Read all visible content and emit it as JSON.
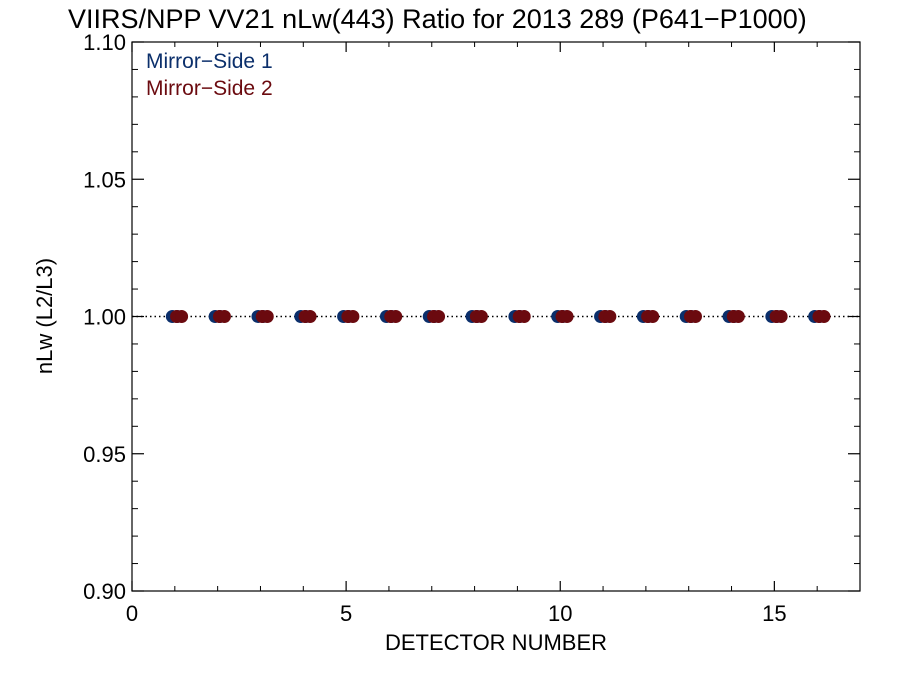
{
  "chart_data": {
    "type": "scatter",
    "title": "VIIRS/NPP VV21 nLw(443) Ratio for 2013 289 (P641−P1000)",
    "xlabel": "DETECTOR NUMBER",
    "ylabel": "nLw (L2/L3)",
    "xlim": [
      0,
      17
    ],
    "ylim": [
      0.9,
      1.1
    ],
    "x_ticks": [
      0,
      5,
      10,
      15
    ],
    "x_tick_labels": [
      "0",
      "5",
      "10",
      "15"
    ],
    "y_ticks": [
      0.9,
      0.95,
      1.0,
      1.05,
      1.1
    ],
    "y_tick_labels": [
      "0.90",
      "0.95",
      "1.00",
      "1.05",
      "1.10"
    ],
    "reference_line": 1.0,
    "grid": false,
    "legend_position": "top-left",
    "series": [
      {
        "name": "Mirror−Side 1",
        "color": "#0b2f6b",
        "x": [
          1,
          2,
          3,
          4,
          5,
          6,
          7,
          8,
          9,
          10,
          11,
          12,
          13,
          14,
          15,
          16
        ],
        "y": [
          1.0,
          1.0,
          1.0,
          1.0,
          1.0,
          1.0,
          1.0,
          1.0,
          1.0,
          1.0,
          1.0,
          1.0,
          1.0,
          1.0,
          1.0,
          1.0
        ]
      },
      {
        "name": "Mirror−Side 2",
        "color": "#6b0a0f",
        "x": [
          1.1,
          2.1,
          3.1,
          4.1,
          5.1,
          6.1,
          7.1,
          8.1,
          9.1,
          10.1,
          11.1,
          12.1,
          13.1,
          14.1,
          15.1,
          16.1
        ],
        "y": [
          1.0,
          1.0,
          1.0,
          1.0,
          1.0,
          1.0,
          1.0,
          1.0,
          1.0,
          1.0,
          1.0,
          1.0,
          1.0,
          1.0,
          1.0,
          1.0
        ]
      }
    ]
  }
}
